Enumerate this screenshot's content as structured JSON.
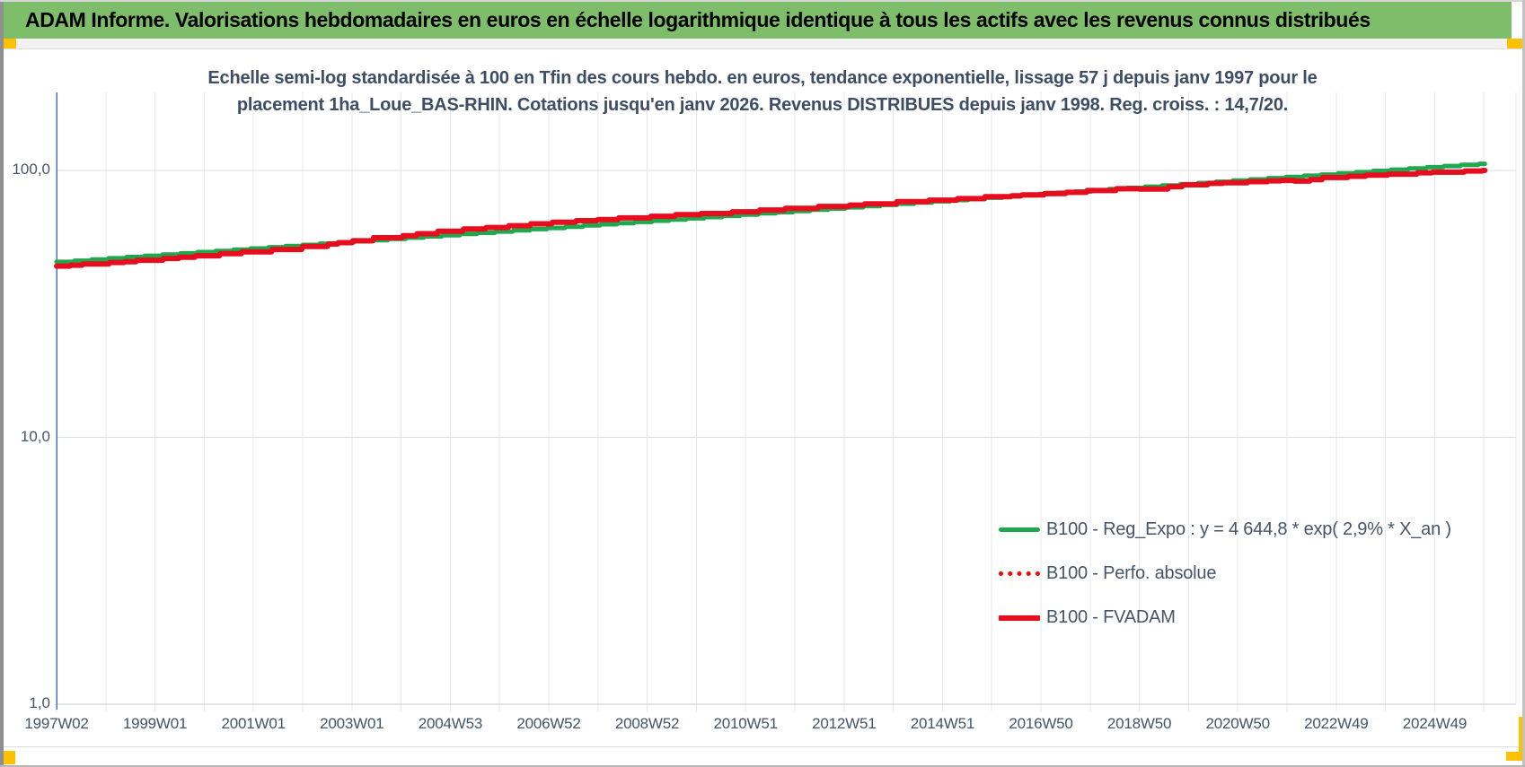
{
  "page": {
    "header": {
      "title": "ADAM Informe. Valorisations hebdomadaires en euros en échelle logarithmique identique à tous les actifs avec les revenus connus distribués"
    },
    "colors": {
      "header_green": "#7ebd69",
      "accent_orange": "#ffc000",
      "axis_line_blue": "#4472c4",
      "text_navy": "#44546a"
    }
  },
  "chart_data": {
    "type": "line",
    "y_scale": "log",
    "title": [
      "Echelle semi-log standardisée à 100 en Tfin des cours hebdo. en euros, tendance exponentielle, lissage 57 j depuis janv 1997 pour le",
      "placement 1ha_Loue_BAS-RHIN. Cotations jusqu'en janv 2026. Revenus DISTRIBUES depuis janv 1998. Reg. croiss. : 14,7/20."
    ],
    "x_tick_labels": [
      "1997W02",
      "1999W01",
      "2001W01",
      "2003W01",
      "2004W53",
      "2006W52",
      "2008W52",
      "2010W51",
      "2012W51",
      "2014W51",
      "2016W50",
      "2018W50",
      "2020W50",
      "2022W49",
      "2024W49"
    ],
    "y_tick_labels": [
      {
        "value": 100,
        "label": "100,0"
      },
      {
        "value": 10,
        "label": "10,0"
      },
      {
        "value": 1,
        "label": "1,0"
      }
    ],
    "x_range_years": [
      1997.02,
      2026.02
    ],
    "y_range": [
      1,
      196
    ],
    "x_gridline_interval_years": 1,
    "grid": true,
    "legend_position": "inside-bottom-right",
    "trend_equation": "y = 4 644,8 * exp( 2,9% *  X_an )",
    "growth_rate_per_year_pct": 2.9,
    "series": [
      {
        "name": "trend",
        "label": "B100 - Reg_Expo : y = 4 644,8 * exp( 2,9% *  X_an )",
        "color": "#1fa84d",
        "style": "solid",
        "render": "trend-steps",
        "points": {
          "years": [
            1997.0,
            2026.02
          ],
          "values": [
            45.2,
            105.9
          ]
        }
      },
      {
        "name": "perfo-absolue",
        "label": "B100 - Perfo. absolue",
        "color": "#ff0000",
        "style": "dotted",
        "render": "stepped",
        "points": {
          "years": [
            1997,
            1998,
            1999,
            2000,
            2001,
            2002,
            2003,
            2004,
            2005,
            2006,
            2007,
            2008,
            2009,
            2010,
            2011,
            2012,
            2013,
            2014,
            2015,
            2016,
            2017,
            2018,
            2019,
            2019.4,
            2020,
            2021,
            2022,
            2022.25,
            2023,
            2024,
            2025,
            2026.02
          ],
          "values": [
            43.6,
            44.8,
            46.2,
            47.8,
            49.4,
            51.2,
            54.0,
            56.6,
            59.2,
            61.3,
            63.3,
            65.2,
            66.8,
            68.4,
            70.1,
            71.8,
            73.6,
            75.6,
            77.4,
            79.3,
            81.3,
            83.5,
            85.8,
            85.2,
            88.2,
            90.2,
            92.0,
            90.8,
            94.0,
            96.2,
            98.2,
            100.0
          ]
        }
      },
      {
        "name": "fvadam",
        "label": "B100 - FVADAM",
        "color": "#e60d1e",
        "style": "solid",
        "render": "stepped",
        "points": {
          "years": [
            1997,
            1998,
            1999,
            2000,
            2001,
            2002,
            2003,
            2004,
            2005,
            2006,
            2007,
            2008,
            2009,
            2010,
            2011,
            2012,
            2013,
            2014,
            2015,
            2016,
            2017,
            2018,
            2019,
            2019.4,
            2020,
            2021,
            2022,
            2022.25,
            2023,
            2024,
            2025,
            2026.02
          ],
          "values": [
            43.6,
            44.8,
            46.2,
            47.8,
            49.4,
            51.2,
            54.0,
            56.6,
            59.2,
            61.3,
            63.3,
            65.2,
            66.8,
            68.4,
            70.1,
            71.8,
            73.6,
            75.6,
            77.4,
            79.3,
            81.3,
            83.5,
            85.8,
            85.2,
            88.2,
            90.2,
            92.0,
            90.8,
            94.0,
            96.2,
            98.2,
            100.0
          ]
        }
      }
    ]
  }
}
